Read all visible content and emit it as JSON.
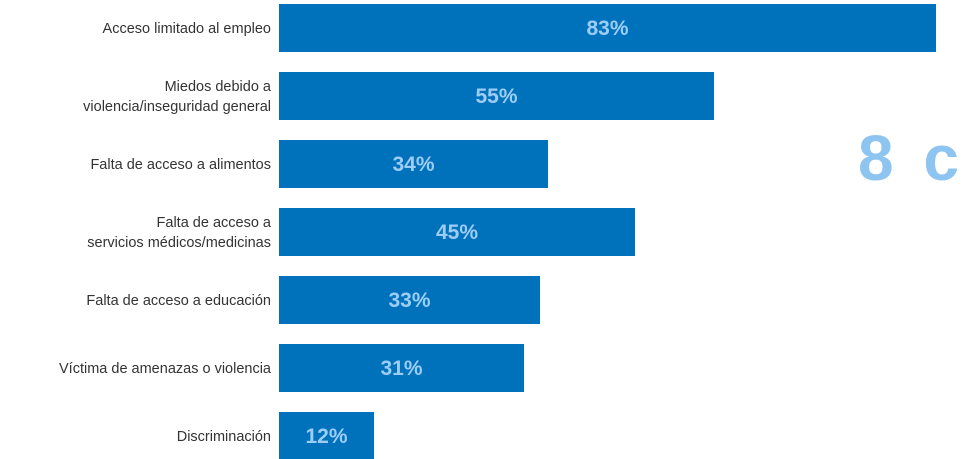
{
  "colors": {
    "bar": "#0072bc",
    "value_text": "#9dcdf5",
    "label_text": "#333333",
    "fragment_text": "#8ec4f0"
  },
  "side_fragment": "8 c",
  "chart_data": {
    "type": "bar",
    "orientation": "horizontal",
    "categories": [
      "Acceso limitado al empleo",
      "Miedos debido a violencia/inseguridad general",
      "Falta de acceso a alimentos",
      "Falta de acceso a servicios médicos/medicinas",
      "Falta de acceso a educación",
      "Víctima de amenazas o violencia",
      "Discriminación"
    ],
    "category_lines": [
      [
        "Acceso limitado al empleo"
      ],
      [
        "Miedos debido a",
        "violencia/inseguridad general"
      ],
      [
        "Falta de acceso a alimentos"
      ],
      [
        "Falta de acceso a",
        "servicios médicos/medicinas"
      ],
      [
        "Falta de acceso a educación"
      ],
      [
        "Víctima de amenazas o violencia"
      ],
      [
        "Discriminación"
      ]
    ],
    "values": [
      83,
      55,
      34,
      45,
      33,
      31,
      12
    ],
    "value_labels": [
      "83%",
      "55%",
      "34%",
      "45%",
      "33%",
      "31%",
      "12%"
    ],
    "xlim": [
      0,
      83
    ],
    "grid": false,
    "legend": "none"
  }
}
